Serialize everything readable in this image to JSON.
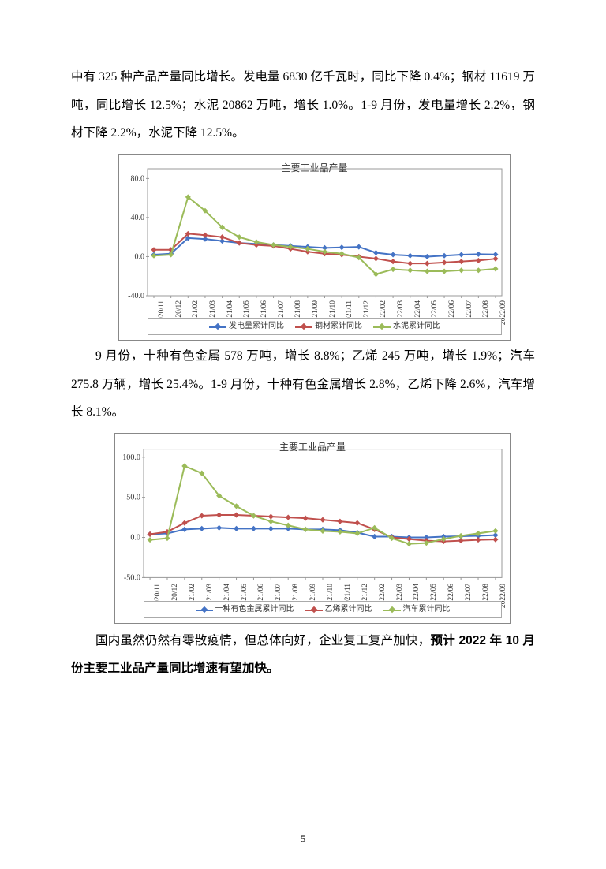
{
  "text": {
    "p1": "中有 325 种产品产量同比增长。发电量 6830 亿千瓦时，同比下降 0.4%；钢材 11619 万吨，同比增长 12.5%；水泥 20862 万吨，增长 1.0%。1-9 月份，发电量增长 2.2%，钢材下降 2.2%，水泥下降 12.5%。",
    "p2": "9 月份，十种有色金属 578 万吨，增长 8.8%；乙烯 245 万吨，增长 1.9%；汽车 275.8 万辆，增长 25.4%。1-9 月份，十种有色金属增长 2.8%，乙烯下降 2.6%，汽车增长 8.1%。",
    "p3a": "国内虽然仍然有零散疫情，但总体向好，企业复工复产加快，",
    "p3b": "预计 2022 年 10 月份主要工业品产量同比增速有望加快。",
    "page_number": "5"
  },
  "chart1": {
    "title": "主要工业品产量",
    "x_labels": [
      "2020/11",
      "2020/12",
      "2021/02",
      "2021/03",
      "2021/04",
      "2021/05",
      "2021/06",
      "2021/07",
      "2021/08",
      "2021/09",
      "2021/10",
      "2021/11",
      "2021/12",
      "2022/02",
      "2022/03",
      "2022/04",
      "2022/05",
      "2022/06",
      "2022/07",
      "2022/08",
      "2022/09"
    ],
    "y_ticks": [
      -40.0,
      0.0,
      40.0,
      80.0
    ],
    "ymin": -40,
    "ymax": 90,
    "series": [
      {
        "name": "发电量累计同比",
        "color": "#4473c5",
        "values": [
          2,
          3,
          19,
          18,
          16,
          14,
          13,
          12,
          11,
          10,
          9,
          9.5,
          10,
          4,
          2,
          1,
          0,
          1,
          2,
          2.5,
          2.2
        ]
      },
      {
        "name": "钢材累计同比",
        "color": "#c0504d",
        "values": [
          7,
          7,
          23.5,
          22,
          20,
          14,
          12,
          11,
          8,
          5,
          3,
          2,
          0,
          -2,
          -5,
          -7,
          -7,
          -6,
          -5,
          -4,
          -2.2
        ]
      },
      {
        "name": "水泥累计同比",
        "color": "#9bbb59",
        "values": [
          1,
          2,
          61,
          47,
          30,
          20,
          15,
          12,
          10,
          8,
          5,
          3,
          -1,
          -18,
          -13,
          -14,
          -15,
          -15,
          -14,
          -14,
          -12.5
        ]
      }
    ],
    "legend_labels": [
      "发电量累计同比",
      "钢材累计同比",
      "水泥累计同比"
    ],
    "colors": [
      "#4473c5",
      "#c0504d",
      "#9bbb59"
    ]
  },
  "chart2": {
    "title": "主要工业品产量",
    "x_labels": [
      "2020/11",
      "2020/12",
      "2021/02",
      "2021/03",
      "2021/04",
      "2021/05",
      "2021/06",
      "2021/07",
      "2021/08",
      "2021/09",
      "2021/10",
      "2021/11",
      "2021/12",
      "2022/02",
      "2022/03",
      "2022/04",
      "2022/05",
      "2022/06",
      "2022/07",
      "2022/08",
      "2022/09"
    ],
    "y_ticks": [
      -50.0,
      0.0,
      50.0,
      100.0
    ],
    "ymin": -50,
    "ymax": 110,
    "series": [
      {
        "name": "十种有色金属累计同比",
        "color": "#4473c5",
        "values": [
          4,
          5,
          10,
          11,
          12,
          11,
          11,
          11,
          11,
          10,
          10,
          9,
          6,
          1,
          1,
          0,
          0,
          1,
          1.5,
          2,
          2.8
        ]
      },
      {
        "name": "乙烯累计同比",
        "color": "#c0504d",
        "values": [
          4,
          7,
          18,
          27,
          28,
          28,
          27,
          26,
          25,
          24,
          22,
          20,
          18,
          10,
          0,
          -2,
          -4,
          -5,
          -4,
          -3,
          -2.6
        ]
      },
      {
        "name": "汽车累计同比",
        "color": "#9bbb59",
        "values": [
          -3,
          -1,
          89,
          80,
          52,
          39,
          27,
          20,
          15,
          10,
          8,
          7,
          5,
          12,
          -1,
          -8,
          -7,
          -2,
          2,
          5,
          8.1
        ]
      }
    ],
    "legend_labels": [
      "十种有色金属累计同比",
      "乙烯累计同比",
      "汽车累计同比"
    ],
    "colors": [
      "#4473c5",
      "#c0504d",
      "#9bbb59"
    ]
  }
}
